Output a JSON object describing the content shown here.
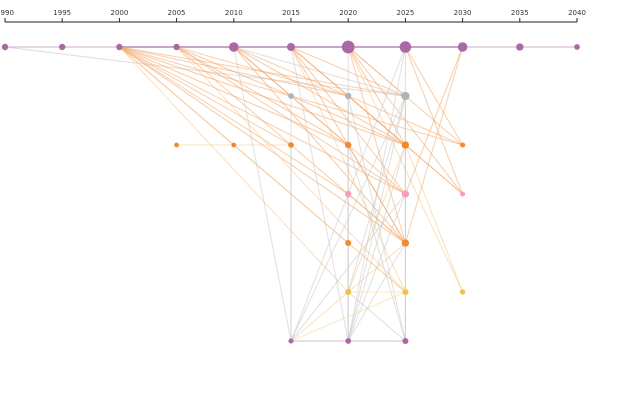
{
  "chart_data": {
    "type": "network-timeline",
    "title": "",
    "x_axis": {
      "ticks": [
        "1990",
        "1995",
        "2000",
        "2005",
        "2010",
        "2015",
        "2020",
        "2025",
        "2030",
        "2035",
        "2040"
      ],
      "range": [
        1990,
        2040
      ],
      "position": "top"
    },
    "rows": [
      {
        "id": "r0",
        "color": "#a86aa4",
        "nodes": [
          {
            "year": 1990,
            "size": 1
          },
          {
            "year": 1995,
            "size": 1
          },
          {
            "year": 2000,
            "size": 1
          },
          {
            "year": 2005,
            "size": 1
          },
          {
            "year": 2010,
            "size": 2
          },
          {
            "year": 2015,
            "size": 1.5
          },
          {
            "year": 2020,
            "size": 3
          },
          {
            "year": 2025,
            "size": 2.6
          },
          {
            "year": 2030,
            "size": 2
          },
          {
            "year": 2035,
            "size": 1.3
          },
          {
            "year": 2040,
            "size": 0.8
          }
        ]
      },
      {
        "id": "r1",
        "color": "#b3b3b3",
        "nodes": [
          {
            "year": 2015,
            "size": 0.8
          },
          {
            "year": 2020,
            "size": 1
          },
          {
            "year": 2025,
            "size": 1.6
          }
        ]
      },
      {
        "id": "r2",
        "color": "#ef8a2e",
        "nodes": [
          {
            "year": 2005,
            "size": 0.5
          },
          {
            "year": 2010,
            "size": 0.5
          },
          {
            "year": 2015,
            "size": 0.8
          },
          {
            "year": 2020,
            "size": 1
          },
          {
            "year": 2025,
            "size": 1.3
          },
          {
            "year": 2030,
            "size": 0.6
          }
        ]
      },
      {
        "id": "r3",
        "color": "#f2a1b8",
        "nodes": [
          {
            "year": 2020,
            "size": 1
          },
          {
            "year": 2025,
            "size": 1.3
          },
          {
            "year": 2030,
            "size": 0.6
          }
        ]
      },
      {
        "id": "r4",
        "color": "#ef8a2e",
        "nodes": [
          {
            "year": 2020,
            "size": 0.9
          },
          {
            "year": 2025,
            "size": 1.3
          }
        ]
      },
      {
        "id": "r5",
        "color": "#f2c242",
        "nodes": [
          {
            "year": 2020,
            "size": 0.9
          },
          {
            "year": 2025,
            "size": 0.9
          },
          {
            "year": 2030,
            "size": 0.7
          }
        ]
      },
      {
        "id": "r6",
        "color": "#a86aa4",
        "nodes": [
          {
            "year": 2015,
            "size": 0.6
          },
          {
            "year": 2020,
            "size": 0.8
          },
          {
            "year": 2025,
            "size": 0.9
          }
        ]
      }
    ],
    "links": [
      {
        "from": [
          "r0",
          1990
        ],
        "to": [
          "r0",
          2040
        ],
        "color": "#a86aa4",
        "weight": 0.5
      },
      {
        "from": [
          "r0",
          2000
        ],
        "to": [
          "r0",
          2030
        ],
        "color": "#a86aa4",
        "weight": 1.3
      },
      {
        "from": [
          "r0",
          1990
        ],
        "to": [
          "r1",
          2025
        ],
        "color": "#c9c9c9",
        "weight": 0.6
      },
      {
        "from": [
          "r0",
          2000
        ],
        "to": [
          "r1",
          2015
        ],
        "color": "#f4a76a",
        "weight": 0.5
      },
      {
        "from": [
          "r0",
          2000
        ],
        "to": [
          "r1",
          2020
        ],
        "color": "#f4a76a",
        "weight": 0.5
      },
      {
        "from": [
          "r0",
          2000
        ],
        "to": [
          "r1",
          2025
        ],
        "color": "#f4a76a",
        "weight": 0.5
      },
      {
        "from": [
          "r0",
          2000
        ],
        "to": [
          "r2",
          2015
        ],
        "color": "#f4a76a",
        "weight": 0.5
      },
      {
        "from": [
          "r0",
          2000
        ],
        "to": [
          "r2",
          2020
        ],
        "color": "#f4a76a",
        "weight": 0.6
      },
      {
        "from": [
          "r0",
          2000
        ],
        "to": [
          "r2",
          2025
        ],
        "color": "#f4a76a",
        "weight": 0.6
      },
      {
        "from": [
          "r0",
          2000
        ],
        "to": [
          "r3",
          2020
        ],
        "color": "#f4a76a",
        "weight": 0.5
      },
      {
        "from": [
          "r0",
          2000
        ],
        "to": [
          "r3",
          2025
        ],
        "color": "#f4a76a",
        "weight": 0.5
      },
      {
        "from": [
          "r0",
          2000
        ],
        "to": [
          "r4",
          2020
        ],
        "color": "#f4a76a",
        "weight": 0.5
      },
      {
        "from": [
          "r0",
          2000
        ],
        "to": [
          "r4",
          2025
        ],
        "color": "#f4a76a",
        "weight": 0.6
      },
      {
        "from": [
          "r0",
          2000
        ],
        "to": [
          "r5",
          2020
        ],
        "color": "#f6c98a",
        "weight": 0.5
      },
      {
        "from": [
          "r0",
          2000
        ],
        "to": [
          "r5",
          2025
        ],
        "color": "#f6c98a",
        "weight": 0.5
      },
      {
        "from": [
          "r0",
          2005
        ],
        "to": [
          "r1",
          2020
        ],
        "color": "#f4a76a",
        "weight": 0.5
      },
      {
        "from": [
          "r0",
          2005
        ],
        "to": [
          "r2",
          2020
        ],
        "color": "#f4a76a",
        "weight": 0.6
      },
      {
        "from": [
          "r0",
          2005
        ],
        "to": [
          "r2",
          2025
        ],
        "color": "#f4a76a",
        "weight": 0.6
      },
      {
        "from": [
          "r0",
          2005
        ],
        "to": [
          "r4",
          2025
        ],
        "color": "#f4a76a",
        "weight": 0.5
      },
      {
        "from": [
          "r0",
          2005
        ],
        "to": [
          "r3",
          2025
        ],
        "color": "#f4a76a",
        "weight": 0.5
      },
      {
        "from": [
          "r0",
          2005
        ],
        "to": [
          "r5",
          2025
        ],
        "color": "#f6c98a",
        "weight": 0.5
      },
      {
        "from": [
          "r0",
          2010
        ],
        "to": [
          "r1",
          2025
        ],
        "color": "#c9c9c9",
        "weight": 0.5
      },
      {
        "from": [
          "r0",
          2010
        ],
        "to": [
          "r2",
          2020
        ],
        "color": "#f4a76a",
        "weight": 0.6
      },
      {
        "from": [
          "r0",
          2010
        ],
        "to": [
          "r2",
          2025
        ],
        "color": "#f4a76a",
        "weight": 0.6
      },
      {
        "from": [
          "r0",
          2010
        ],
        "to": [
          "r3",
          2025
        ],
        "color": "#f4a76a",
        "weight": 0.5
      },
      {
        "from": [
          "r0",
          2010
        ],
        "to": [
          "r4",
          2025
        ],
        "color": "#f4a76a",
        "weight": 0.6
      },
      {
        "from": [
          "r0",
          2010
        ],
        "to": [
          "r6",
          2015
        ],
        "color": "#c9c9c9",
        "weight": 0.5
      },
      {
        "from": [
          "r0",
          2010
        ],
        "to": [
          "r2",
          2030
        ],
        "color": "#f4a76a",
        "weight": 0.5
      },
      {
        "from": [
          "r0",
          2015
        ],
        "to": [
          "r1",
          2025
        ],
        "color": "#f4a76a",
        "weight": 0.5
      },
      {
        "from": [
          "r0",
          2015
        ],
        "to": [
          "r2",
          2025
        ],
        "color": "#f4a76a",
        "weight": 0.7
      },
      {
        "from": [
          "r0",
          2015
        ],
        "to": [
          "r3",
          2025
        ],
        "color": "#f4a76a",
        "weight": 0.5
      },
      {
        "from": [
          "r0",
          2015
        ],
        "to": [
          "r4",
          2025
        ],
        "color": "#f4a76a",
        "weight": 0.6
      },
      {
        "from": [
          "r0",
          2015
        ],
        "to": [
          "r5",
          2025
        ],
        "color": "#f6c98a",
        "weight": 0.5
      },
      {
        "from": [
          "r0",
          2015
        ],
        "to": [
          "r3",
          2030
        ],
        "color": "#f4a76a",
        "weight": 0.5
      },
      {
        "from": [
          "r0",
          2015
        ],
        "to": [
          "r6",
          2020
        ],
        "color": "#c9c9c9",
        "weight": 0.5
      },
      {
        "from": [
          "r0",
          2020
        ],
        "to": [
          "r1",
          2025
        ],
        "color": "#c9c9c9",
        "weight": 0.6
      },
      {
        "from": [
          "r0",
          2020
        ],
        "to": [
          "r2",
          2025
        ],
        "color": "#f4a76a",
        "weight": 0.6
      },
      {
        "from": [
          "r0",
          2020
        ],
        "to": [
          "r2",
          2030
        ],
        "color": "#f4a76a",
        "weight": 0.5
      },
      {
        "from": [
          "r0",
          2020
        ],
        "to": [
          "r3",
          2030
        ],
        "color": "#f4a76a",
        "weight": 0.5
      },
      {
        "from": [
          "r0",
          2020
        ],
        "to": [
          "r5",
          2030
        ],
        "color": "#f6c98a",
        "weight": 0.5
      },
      {
        "from": [
          "r0",
          2020
        ],
        "to": [
          "r4",
          2025
        ],
        "color": "#f4a76a",
        "weight": 0.5
      },
      {
        "from": [
          "r0",
          2020
        ],
        "to": [
          "r6",
          2020
        ],
        "color": "#c9c9c9",
        "weight": 0.6
      },
      {
        "from": [
          "r0",
          2025
        ],
        "to": [
          "r6",
          2025
        ],
        "color": "#c9c9c9",
        "weight": 0.6
      },
      {
        "from": [
          "r0",
          2025
        ],
        "to": [
          "r2",
          2030
        ],
        "color": "#f4a76a",
        "weight": 0.5
      },
      {
        "from": [
          "r0",
          2025
        ],
        "to": [
          "r3",
          2030
        ],
        "color": "#f4a76a",
        "weight": 0.5
      },
      {
        "from": [
          "r0",
          2025
        ],
        "to": [
          "r6",
          2015
        ],
        "color": "#c9c9c9",
        "weight": 0.5
      },
      {
        "from": [
          "r0",
          2025
        ],
        "to": [
          "r6",
          2020
        ],
        "color": "#c9c9c9",
        "weight": 0.5
      },
      {
        "from": [
          "r0",
          2030
        ],
        "to": [
          "r3",
          2025
        ],
        "color": "#f4a76a",
        "weight": 0.5
      },
      {
        "from": [
          "r0",
          2030
        ],
        "to": [
          "r4",
          2025
        ],
        "color": "#f4a76a",
        "weight": 0.5
      },
      {
        "from": [
          "r1",
          2025
        ],
        "to": [
          "r6",
          2015
        ],
        "color": "#c9c9c9",
        "weight": 0.5
      },
      {
        "from": [
          "r1",
          2025
        ],
        "to": [
          "r6",
          2020
        ],
        "color": "#c9c9c9",
        "weight": 0.5
      },
      {
        "from": [
          "r1",
          2025
        ],
        "to": [
          "r5",
          2020
        ],
        "color": "#c9c9c9",
        "weight": 0.5
      },
      {
        "from": [
          "r1",
          2020
        ],
        "to": [
          "r6",
          2025
        ],
        "color": "#c9c9c9",
        "weight": 0.5
      },
      {
        "from": [
          "r1",
          2015
        ],
        "to": [
          "r6",
          2015
        ],
        "color": "#c9c9c9",
        "weight": 0.5
      },
      {
        "from": [
          "r2",
          2025
        ],
        "to": [
          "r6",
          2020
        ],
        "color": "#c9c9c9",
        "weight": 0.5
      },
      {
        "from": [
          "r2",
          2025
        ],
        "to": [
          "r5",
          2020
        ],
        "color": "#f6c98a",
        "weight": 0.5
      },
      {
        "from": [
          "r2",
          2020
        ],
        "to": [
          "r6",
          2025
        ],
        "color": "#c9c9c9",
        "weight": 0.5
      },
      {
        "from": [
          "r2",
          2020
        ],
        "to": [
          "r4",
          2025
        ],
        "color": "#f4a76a",
        "weight": 0.5
      },
      {
        "from": [
          "r2",
          2025
        ],
        "to": [
          "r5",
          2030
        ],
        "color": "#f6c98a",
        "weight": 0.5
      },
      {
        "from": [
          "r2",
          2005
        ],
        "to": [
          "r2",
          2010
        ],
        "color": "#f6c98a",
        "weight": 0.4
      },
      {
        "from": [
          "r3",
          2025
        ],
        "to": [
          "r6",
          2015
        ],
        "color": "#c9c9c9",
        "weight": 0.5
      },
      {
        "from": [
          "r3",
          2025
        ],
        "to": [
          "r6",
          2020
        ],
        "color": "#c9c9c9",
        "weight": 0.5
      },
      {
        "from": [
          "r3",
          2020
        ],
        "to": [
          "r4",
          2025
        ],
        "color": "#f4a76a",
        "weight": 0.5
      },
      {
        "from": [
          "r4",
          2025
        ],
        "to": [
          "r6",
          2015
        ],
        "color": "#f6c98a",
        "weight": 0.5
      },
      {
        "from": [
          "r4",
          2025
        ],
        "to": [
          "r6",
          2020
        ],
        "color": "#c9c9c9",
        "weight": 0.5
      },
      {
        "from": [
          "r4",
          2020
        ],
        "to": [
          "r5",
          2025
        ],
        "color": "#f6c98a",
        "weight": 0.5
      },
      {
        "from": [
          "r5",
          2020
        ],
        "to": [
          "r5",
          2025
        ],
        "color": "#f6d98a",
        "weight": 0.5
      },
      {
        "from": [
          "r5",
          2020
        ],
        "to": [
          "r6",
          2025
        ],
        "color": "#c9c9c9",
        "weight": 0.5
      },
      {
        "from": [
          "r5",
          2025
        ],
        "to": [
          "r6",
          2015
        ],
        "color": "#f6d98a",
        "weight": 0.5
      },
      {
        "from": [
          "r6",
          2015
        ],
        "to": [
          "r6",
          2025
        ],
        "color": "#c9a3c6",
        "weight": 0.7
      },
      {
        "from": [
          "r1",
          2020
        ],
        "to": [
          "r6",
          2020
        ],
        "color": "#c9c9c9",
        "weight": 0.7
      },
      {
        "from": [
          "r1",
          2025
        ],
        "to": [
          "r6",
          2025
        ],
        "color": "#c9c9c9",
        "weight": 0.7
      },
      {
        "from": [
          "r2",
          2015
        ],
        "to": [
          "r6",
          2015
        ],
        "color": "#c9c9c9",
        "weight": 0.5
      },
      {
        "from": [
          "r2",
          2010
        ],
        "to": [
          "r2",
          2015
        ],
        "color": "#f6c98a",
        "weight": 0.4
      },
      {
        "from": [
          "r1",
          2015
        ],
        "to": [
          "r2",
          2030
        ],
        "color": "#f4a76a",
        "weight": 0.4
      },
      {
        "from": [
          "r1",
          2020
        ],
        "to": [
          "r3",
          2030
        ],
        "color": "#f4a76a",
        "weight": 0.4
      }
    ]
  }
}
